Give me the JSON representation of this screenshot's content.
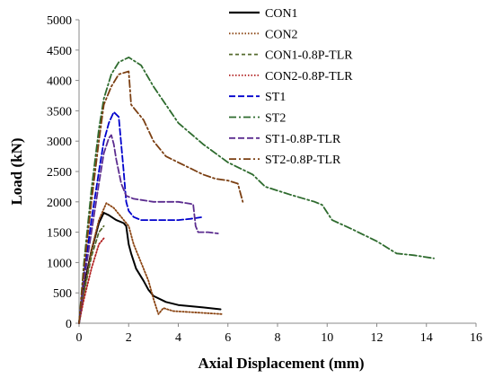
{
  "chart_data": {
    "type": "line",
    "title": "",
    "xlabel": "Axial Displacement (mm)",
    "ylabel": "Load (kN)",
    "xlim": [
      0,
      16
    ],
    "ylim": [
      0,
      5000
    ],
    "xticks": [
      0,
      2,
      4,
      6,
      8,
      10,
      12,
      14,
      16
    ],
    "yticks": [
      0,
      500,
      1000,
      1500,
      2000,
      2500,
      3000,
      3500,
      4000,
      4500,
      5000
    ],
    "grid": false,
    "legend_position": "top-right",
    "series": [
      {
        "name": "CON1",
        "color": "#000000",
        "dash": "solid",
        "points": [
          [
            0,
            0
          ],
          [
            0.2,
            600
          ],
          [
            0.5,
            1200
          ],
          [
            0.8,
            1650
          ],
          [
            1.0,
            1820
          ],
          [
            1.2,
            1780
          ],
          [
            1.5,
            1700
          ],
          [
            1.8,
            1650
          ],
          [
            1.9,
            1600
          ],
          [
            2.0,
            1300
          ],
          [
            2.1,
            1150
          ],
          [
            2.3,
            900
          ],
          [
            2.6,
            700
          ],
          [
            2.8,
            550
          ],
          [
            3.0,
            450
          ],
          [
            3.5,
            350
          ],
          [
            4.0,
            300
          ],
          [
            5.0,
            260
          ],
          [
            5.7,
            230
          ]
        ]
      },
      {
        "name": "CON2",
        "color": "#8B4513",
        "dash": "dotted",
        "points": [
          [
            0,
            0
          ],
          [
            0.2,
            500
          ],
          [
            0.5,
            1200
          ],
          [
            0.8,
            1700
          ],
          [
            1.1,
            1980
          ],
          [
            1.4,
            1900
          ],
          [
            1.7,
            1750
          ],
          [
            2.0,
            1600
          ],
          [
            2.2,
            1300
          ],
          [
            2.5,
            1000
          ],
          [
            2.8,
            700
          ],
          [
            3.0,
            400
          ],
          [
            3.2,
            150
          ],
          [
            3.4,
            250
          ],
          [
            3.8,
            200
          ],
          [
            5.0,
            170
          ],
          [
            5.8,
            150
          ]
        ]
      },
      {
        "name": "CON1-0.8P-TLR",
        "color": "#556B2F",
        "dash": "dashed",
        "points": [
          [
            0,
            0
          ],
          [
            0.2,
            500
          ],
          [
            0.5,
            1100
          ],
          [
            0.8,
            1500
          ],
          [
            1.0,
            1600
          ]
        ]
      },
      {
        "name": "CON2-0.8P-TLR",
        "color": "#B22222",
        "dash": "dotted",
        "points": [
          [
            0,
            0
          ],
          [
            0.2,
            400
          ],
          [
            0.5,
            900
          ],
          [
            0.8,
            1300
          ],
          [
            1.0,
            1400
          ]
        ]
      },
      {
        "name": "ST1",
        "color": "#0000CC",
        "dash": "longdash",
        "points": [
          [
            0,
            0
          ],
          [
            0.2,
            800
          ],
          [
            0.5,
            1700
          ],
          [
            0.8,
            2500
          ],
          [
            1.0,
            3000
          ],
          [
            1.2,
            3300
          ],
          [
            1.4,
            3480
          ],
          [
            1.6,
            3400
          ],
          [
            1.8,
            2500
          ],
          [
            1.9,
            2000
          ],
          [
            2.0,
            1850
          ],
          [
            2.2,
            1750
          ],
          [
            2.5,
            1700
          ],
          [
            3.0,
            1700
          ],
          [
            4.0,
            1700
          ],
          [
            4.5,
            1720
          ],
          [
            5.0,
            1750
          ]
        ]
      },
      {
        "name": "ST2",
        "color": "#2E6B2E",
        "dash": "dashdot",
        "points": [
          [
            0,
            0
          ],
          [
            0.2,
            1000
          ],
          [
            0.5,
            2200
          ],
          [
            0.8,
            3200
          ],
          [
            1.0,
            3700
          ],
          [
            1.3,
            4100
          ],
          [
            1.6,
            4300
          ],
          [
            2.0,
            4380
          ],
          [
            2.5,
            4250
          ],
          [
            3.0,
            3900
          ],
          [
            3.5,
            3600
          ],
          [
            4.0,
            3300
          ],
          [
            5.0,
            2950
          ],
          [
            6.0,
            2650
          ],
          [
            7.0,
            2450
          ],
          [
            7.5,
            2250
          ],
          [
            8.5,
            2120
          ],
          [
            9.5,
            2000
          ],
          [
            9.8,
            1950
          ],
          [
            10.2,
            1700
          ],
          [
            11.0,
            1550
          ],
          [
            12.0,
            1350
          ],
          [
            12.8,
            1150
          ],
          [
            13.5,
            1120
          ],
          [
            14.3,
            1070
          ]
        ]
      },
      {
        "name": "ST1-0.8P-TLR",
        "color": "#5B2C8F",
        "dash": "longdash",
        "points": [
          [
            0,
            0
          ],
          [
            0.2,
            700
          ],
          [
            0.5,
            1500
          ],
          [
            0.8,
            2300
          ],
          [
            1.0,
            2800
          ],
          [
            1.2,
            3050
          ],
          [
            1.3,
            3100
          ],
          [
            1.4,
            2950
          ],
          [
            1.5,
            2700
          ],
          [
            1.7,
            2300
          ],
          [
            1.9,
            2100
          ],
          [
            2.2,
            2050
          ],
          [
            3.0,
            2000
          ],
          [
            4.0,
            2000
          ],
          [
            4.6,
            1960
          ],
          [
            4.7,
            1600
          ],
          [
            4.8,
            1500
          ],
          [
            5.2,
            1500
          ],
          [
            5.6,
            1480
          ]
        ]
      },
      {
        "name": "ST2-0.8P-TLR",
        "color": "#7B3F12",
        "dash": "dashdot",
        "points": [
          [
            0,
            0
          ],
          [
            0.2,
            900
          ],
          [
            0.5,
            2000
          ],
          [
            0.8,
            3000
          ],
          [
            1.0,
            3600
          ],
          [
            1.3,
            3900
          ],
          [
            1.6,
            4100
          ],
          [
            2.0,
            4150
          ],
          [
            2.1,
            3600
          ],
          [
            2.3,
            3500
          ],
          [
            2.6,
            3350
          ],
          [
            3.0,
            3000
          ],
          [
            3.5,
            2750
          ],
          [
            4.0,
            2650
          ],
          [
            5.0,
            2450
          ],
          [
            5.5,
            2380
          ],
          [
            6.0,
            2350
          ],
          [
            6.4,
            2300
          ],
          [
            6.6,
            2000
          ]
        ]
      }
    ]
  }
}
